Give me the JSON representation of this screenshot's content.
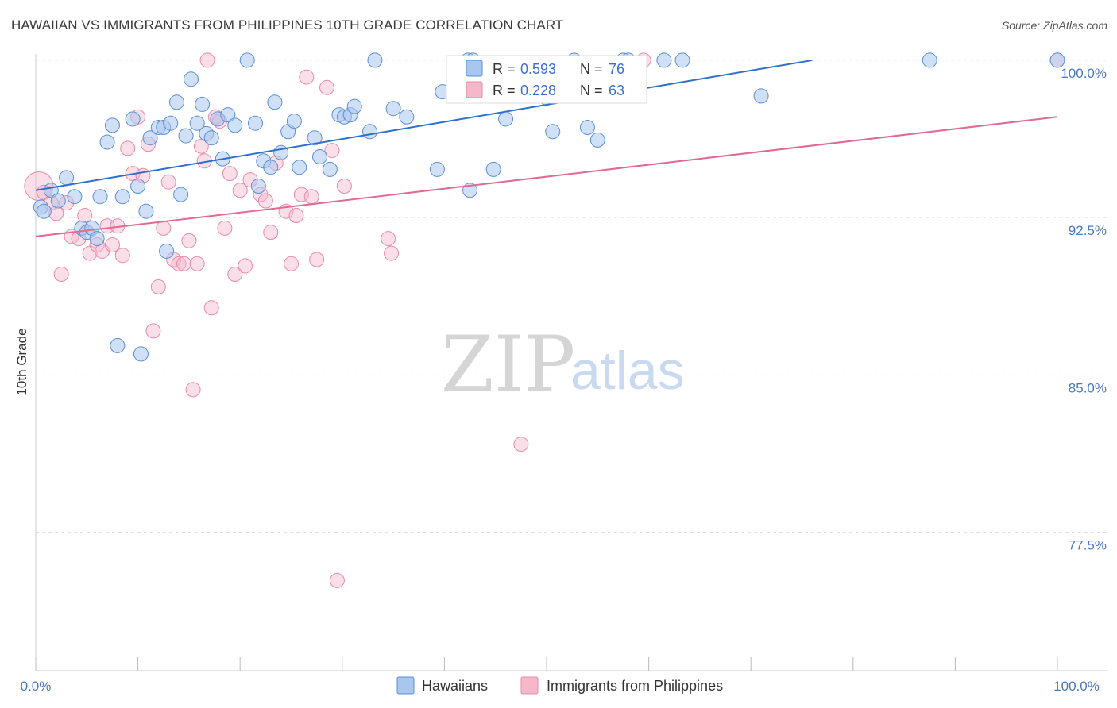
{
  "title": "HAWAIIAN VS IMMIGRANTS FROM PHILIPPINES 10TH GRADE CORRELATION CHART",
  "source": "Source: ZipAtlas.com",
  "watermark": {
    "zip": "ZIP",
    "atlas": "atlas"
  },
  "colors": {
    "blue_fill": "#a9c6ee",
    "blue_stroke": "#5b8fd6",
    "blue_line": "#2f6fcc",
    "pink_fill": "#f5b8cb",
    "pink_stroke": "#e88aa8",
    "pink_line": "#e06a95",
    "grid": "#dddddd",
    "tick_text": "#4a78c2"
  },
  "legend": {
    "rows": [
      {
        "r_label": "R = ",
        "r_value": "0.593",
        "n_label": "N = ",
        "n_value": "76"
      },
      {
        "r_label": "R = ",
        "r_value": "0.228",
        "n_label": "N = ",
        "n_value": "63"
      }
    ]
  },
  "chart_data": {
    "type": "scatter",
    "title": "HAWAIIAN VS IMMIGRANTS FROM PHILIPPINES 10TH GRADE CORRELATION CHART",
    "xlabel": "",
    "ylabel": "10th Grade",
    "xlim": [
      0,
      100
    ],
    "ylim": [
      70.9,
      100.3
    ],
    "x_tick_labels": [
      "0.0%",
      "100.0%"
    ],
    "y_ticks": [
      100.0,
      92.5,
      85.0,
      77.5
    ],
    "y_tick_labels": [
      "100.0%",
      "92.5%",
      "85.0%",
      "77.5%"
    ],
    "grid": true,
    "legend_position": "top-center",
    "series": [
      {
        "name": "Hawaiians",
        "trend": {
          "x": [
            0,
            76
          ],
          "y": [
            93.8,
            100.0
          ]
        },
        "points": [
          {
            "x": 0.5,
            "y": 93.0
          },
          {
            "x": 1.5,
            "y": 93.8
          },
          {
            "x": 2.2,
            "y": 93.3
          },
          {
            "x": 3.0,
            "y": 94.4
          },
          {
            "x": 3.8,
            "y": 93.5
          },
          {
            "x": 4.5,
            "y": 92.0
          },
          {
            "x": 5.0,
            "y": 91.8
          },
          {
            "x": 5.5,
            "y": 92.0
          },
          {
            "x": 6.0,
            "y": 91.5
          },
          {
            "x": 6.3,
            "y": 93.5
          },
          {
            "x": 7.0,
            "y": 96.1
          },
          {
            "x": 7.5,
            "y": 96.9
          },
          {
            "x": 8.0,
            "y": 86.4
          },
          {
            "x": 8.5,
            "y": 93.5
          },
          {
            "x": 9.5,
            "y": 97.2
          },
          {
            "x": 10.0,
            "y": 94.0
          },
          {
            "x": 10.3,
            "y": 86.0
          },
          {
            "x": 10.8,
            "y": 92.8
          },
          {
            "x": 11.2,
            "y": 96.3
          },
          {
            "x": 12.0,
            "y": 96.8
          },
          {
            "x": 12.5,
            "y": 96.8
          },
          {
            "x": 12.8,
            "y": 90.9
          },
          {
            "x": 13.2,
            "y": 97.0
          },
          {
            "x": 13.8,
            "y": 98.0
          },
          {
            "x": 14.2,
            "y": 93.6
          },
          {
            "x": 14.7,
            "y": 96.4
          },
          {
            "x": 15.2,
            "y": 99.1
          },
          {
            "x": 15.8,
            "y": 97.0
          },
          {
            "x": 16.3,
            "y": 97.9
          },
          {
            "x": 16.7,
            "y": 96.5
          },
          {
            "x": 17.2,
            "y": 96.3
          },
          {
            "x": 17.8,
            "y": 97.2
          },
          {
            "x": 18.3,
            "y": 95.3
          },
          {
            "x": 18.8,
            "y": 97.4
          },
          {
            "x": 19.5,
            "y": 96.9
          },
          {
            "x": 20.7,
            "y": 100.0
          },
          {
            "x": 21.5,
            "y": 97.0
          },
          {
            "x": 21.8,
            "y": 94.0
          },
          {
            "x": 22.3,
            "y": 95.2
          },
          {
            "x": 23.0,
            "y": 94.9
          },
          {
            "x": 23.4,
            "y": 98.0
          },
          {
            "x": 24.0,
            "y": 95.6
          },
          {
            "x": 24.7,
            "y": 96.6
          },
          {
            "x": 25.3,
            "y": 97.1
          },
          {
            "x": 25.8,
            "y": 94.9
          },
          {
            "x": 27.3,
            "y": 96.3
          },
          {
            "x": 27.8,
            "y": 95.4
          },
          {
            "x": 28.8,
            "y": 94.8
          },
          {
            "x": 29.7,
            "y": 97.4
          },
          {
            "x": 30.2,
            "y": 97.3
          },
          {
            "x": 30.8,
            "y": 97.4
          },
          {
            "x": 31.2,
            "y": 97.8
          },
          {
            "x": 32.7,
            "y": 96.6
          },
          {
            "x": 33.2,
            "y": 100.0
          },
          {
            "x": 35.0,
            "y": 97.7
          },
          {
            "x": 36.3,
            "y": 97.3
          },
          {
            "x": 39.3,
            "y": 94.8
          },
          {
            "x": 39.8,
            "y": 98.5
          },
          {
            "x": 42.3,
            "y": 100.0
          },
          {
            "x": 42.8,
            "y": 100.0
          },
          {
            "x": 42.5,
            "y": 93.8
          },
          {
            "x": 44.8,
            "y": 94.8
          },
          {
            "x": 46.0,
            "y": 97.2
          },
          {
            "x": 50.0,
            "y": 98.2
          },
          {
            "x": 50.6,
            "y": 96.6
          },
          {
            "x": 52.7,
            "y": 100.0
          },
          {
            "x": 54.0,
            "y": 96.8
          },
          {
            "x": 55.0,
            "y": 96.2
          },
          {
            "x": 57.5,
            "y": 100.0
          },
          {
            "x": 58.0,
            "y": 100.0
          },
          {
            "x": 61.5,
            "y": 100.0
          },
          {
            "x": 63.3,
            "y": 100.0
          },
          {
            "x": 71.0,
            "y": 98.3
          },
          {
            "x": 87.5,
            "y": 100.0
          },
          {
            "x": 100.0,
            "y": 100.0
          },
          {
            "x": 0.8,
            "y": 92.8
          }
        ]
      },
      {
        "name": "Immigrants from Philippines",
        "trend": {
          "x": [
            0,
            100
          ],
          "y": [
            91.6,
            97.3
          ]
        },
        "points": [
          {
            "x": 0.3,
            "y": 94.0
          },
          {
            "x": 0.8,
            "y": 93.7
          },
          {
            "x": 1.5,
            "y": 93.2
          },
          {
            "x": 2.0,
            "y": 92.7
          },
          {
            "x": 2.5,
            "y": 89.8
          },
          {
            "x": 3.0,
            "y": 93.2
          },
          {
            "x": 3.5,
            "y": 91.6
          },
          {
            "x": 4.2,
            "y": 91.5
          },
          {
            "x": 4.8,
            "y": 92.6
          },
          {
            "x": 5.3,
            "y": 90.8
          },
          {
            "x": 6.0,
            "y": 91.2
          },
          {
            "x": 6.5,
            "y": 90.9
          },
          {
            "x": 7.0,
            "y": 92.1
          },
          {
            "x": 7.5,
            "y": 91.2
          },
          {
            "x": 8.0,
            "y": 92.1
          },
          {
            "x": 8.5,
            "y": 90.7
          },
          {
            "x": 9.0,
            "y": 95.8
          },
          {
            "x": 9.5,
            "y": 94.6
          },
          {
            "x": 10.0,
            "y": 97.3
          },
          {
            "x": 10.5,
            "y": 94.5
          },
          {
            "x": 11.0,
            "y": 96.0
          },
          {
            "x": 11.5,
            "y": 87.1
          },
          {
            "x": 12.0,
            "y": 89.2
          },
          {
            "x": 12.5,
            "y": 92.0
          },
          {
            "x": 13.0,
            "y": 94.2
          },
          {
            "x": 13.5,
            "y": 90.5
          },
          {
            "x": 14.0,
            "y": 90.3
          },
          {
            "x": 14.5,
            "y": 90.3
          },
          {
            "x": 15.0,
            "y": 91.4
          },
          {
            "x": 15.4,
            "y": 84.3
          },
          {
            "x": 15.8,
            "y": 90.3
          },
          {
            "x": 16.2,
            "y": 95.9
          },
          {
            "x": 16.5,
            "y": 95.2
          },
          {
            "x": 16.8,
            "y": 100.0
          },
          {
            "x": 17.2,
            "y": 88.2
          },
          {
            "x": 17.6,
            "y": 97.3
          },
          {
            "x": 18.0,
            "y": 97.1
          },
          {
            "x": 18.5,
            "y": 92.0
          },
          {
            "x": 19.0,
            "y": 94.6
          },
          {
            "x": 19.5,
            "y": 89.8
          },
          {
            "x": 20.0,
            "y": 93.8
          },
          {
            "x": 20.5,
            "y": 90.2
          },
          {
            "x": 21.0,
            "y": 94.3
          },
          {
            "x": 22.0,
            "y": 93.6
          },
          {
            "x": 22.5,
            "y": 93.3
          },
          {
            "x": 23.0,
            "y": 91.8
          },
          {
            "x": 23.5,
            "y": 95.1
          },
          {
            "x": 24.5,
            "y": 92.8
          },
          {
            "x": 25.0,
            "y": 90.3
          },
          {
            "x": 25.5,
            "y": 92.6
          },
          {
            "x": 26.0,
            "y": 93.6
          },
          {
            "x": 26.5,
            "y": 99.2
          },
          {
            "x": 27.0,
            "y": 93.5
          },
          {
            "x": 27.5,
            "y": 90.5
          },
          {
            "x": 28.5,
            "y": 98.7
          },
          {
            "x": 29.0,
            "y": 95.7
          },
          {
            "x": 29.5,
            "y": 75.2
          },
          {
            "x": 30.2,
            "y": 94.0
          },
          {
            "x": 34.5,
            "y": 91.5
          },
          {
            "x": 34.8,
            "y": 90.8
          },
          {
            "x": 47.5,
            "y": 81.7
          },
          {
            "x": 59.5,
            "y": 100.0
          },
          {
            "x": 100.0,
            "y": 100.0
          }
        ]
      }
    ]
  },
  "bottom_legend": {
    "items": [
      "Hawaiians",
      "Immigrants from Philippines"
    ]
  }
}
